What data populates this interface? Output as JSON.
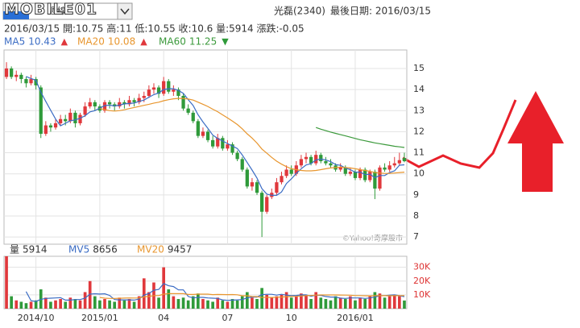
{
  "header": {
    "logo": "MOBILE01",
    "select": "週線",
    "title": "光磊(2340)",
    "last_date": "最後日期: 2016/03/15",
    "info": "2016/03/15 開:10.75 高:11 低:10.55 收:10.6 量:5914 漲跌:-0.05"
  },
  "chart_data": {
    "type": "candlestick",
    "watermark": "©Yahoo!奇摩股市",
    "up_color": "#e0383c",
    "down_color": "#2f9a3a",
    "categories": [
      null,
      null,
      null,
      null,
      null,
      null,
      "2014/10",
      null,
      null,
      null,
      null,
      null,
      null,
      null,
      null,
      null,
      null,
      null,
      null,
      "2015/01",
      null,
      null,
      null,
      null,
      null,
      null,
      null,
      null,
      null,
      null,
      null,
      null,
      "04",
      null,
      null,
      null,
      null,
      null,
      null,
      null,
      null,
      null,
      null,
      null,
      null,
      "07",
      null,
      null,
      null,
      null,
      null,
      null,
      null,
      null,
      null,
      null,
      null,
      null,
      "10",
      null,
      null,
      null,
      null,
      null,
      null,
      null,
      null,
      null,
      null,
      null,
      null,
      "2016/01",
      null,
      null,
      null,
      null,
      null,
      null,
      null,
      null,
      null,
      null
    ],
    "ylim": [
      6.66,
      15.88
    ],
    "yticks": [
      7,
      8,
      9,
      10,
      11,
      12,
      13,
      14,
      15
    ],
    "grid": true,
    "candles": [
      [
        14.6,
        15.3,
        14.5,
        15.0
      ],
      [
        15.0,
        15.1,
        14.5,
        14.6
      ],
      [
        14.6,
        14.9,
        14.4,
        14.7
      ],
      [
        14.7,
        14.8,
        14.3,
        14.5
      ],
      [
        14.5,
        14.6,
        14.1,
        14.3
      ],
      [
        14.3,
        14.7,
        14.2,
        14.5
      ],
      [
        14.5,
        14.6,
        14.0,
        14.2
      ],
      [
        14.1,
        14.2,
        11.7,
        11.9
      ],
      [
        11.9,
        12.5,
        11.8,
        12.3
      ],
      [
        12.3,
        12.4,
        12.0,
        12.2
      ],
      [
        12.2,
        12.6,
        12.1,
        12.4
      ],
      [
        12.4,
        12.8,
        12.3,
        12.6
      ],
      [
        12.6,
        12.8,
        12.3,
        12.5
      ],
      [
        12.5,
        13.1,
        12.4,
        12.9
      ],
      [
        12.9,
        13.0,
        12.2,
        12.4
      ],
      [
        12.4,
        12.9,
        12.3,
        12.8
      ],
      [
        12.8,
        13.4,
        12.7,
        13.2
      ],
      [
        13.2,
        13.6,
        13.1,
        13.4
      ],
      [
        13.4,
        13.5,
        13.0,
        13.2
      ],
      [
        13.2,
        13.3,
        12.9,
        13.0
      ],
      [
        13.0,
        13.5,
        12.9,
        13.4
      ],
      [
        13.4,
        13.5,
        13.1,
        13.3
      ],
      [
        13.3,
        13.4,
        13.0,
        13.2
      ],
      [
        13.2,
        13.6,
        13.1,
        13.4
      ],
      [
        13.4,
        13.5,
        13.1,
        13.3
      ],
      [
        13.3,
        13.7,
        13.2,
        13.5
      ],
      [
        13.5,
        13.6,
        13.2,
        13.4
      ],
      [
        13.4,
        13.8,
        13.3,
        13.6
      ],
      [
        13.6,
        13.9,
        13.4,
        13.7
      ],
      [
        13.7,
        14.2,
        13.6,
        14.0
      ],
      [
        14.0,
        14.3,
        13.8,
        14.1
      ],
      [
        14.1,
        14.2,
        13.6,
        13.8
      ],
      [
        13.8,
        14.6,
        13.7,
        14.4
      ],
      [
        14.4,
        14.5,
        13.8,
        13.9
      ],
      [
        13.9,
        14.2,
        13.7,
        14.0
      ],
      [
        14.0,
        14.1,
        13.5,
        13.7
      ],
      [
        13.7,
        13.8,
        13.0,
        13.1
      ],
      [
        13.1,
        13.3,
        12.8,
        12.9
      ],
      [
        12.9,
        13.0,
        12.4,
        12.5
      ],
      [
        12.5,
        12.6,
        11.7,
        11.8
      ],
      [
        11.8,
        12.2,
        11.7,
        12.0
      ],
      [
        12.0,
        12.1,
        11.5,
        11.6
      ],
      [
        11.6,
        11.8,
        11.2,
        11.3
      ],
      [
        11.3,
        11.9,
        11.2,
        11.7
      ],
      [
        11.7,
        11.8,
        11.1,
        11.2
      ],
      [
        11.2,
        11.6,
        11.1,
        11.4
      ],
      [
        11.4,
        11.5,
        10.9,
        11.0
      ],
      [
        11.0,
        11.1,
        10.6,
        10.7
      ],
      [
        10.7,
        10.8,
        10.1,
        10.2
      ],
      [
        10.2,
        10.3,
        9.3,
        9.4
      ],
      [
        9.4,
        9.8,
        9.2,
        9.6
      ],
      [
        9.6,
        9.7,
        9.0,
        9.1
      ],
      [
        9.1,
        9.2,
        7.0,
        8.2
      ],
      [
        8.2,
        9.0,
        8.1,
        8.9
      ],
      [
        8.9,
        9.3,
        8.8,
        9.1
      ],
      [
        9.1,
        9.8,
        9.0,
        9.6
      ],
      [
        9.6,
        10.1,
        9.5,
        9.9
      ],
      [
        9.9,
        10.4,
        9.8,
        10.2
      ],
      [
        10.2,
        10.4,
        9.9,
        10.0
      ],
      [
        10.0,
        10.6,
        9.9,
        10.4
      ],
      [
        10.4,
        10.9,
        10.3,
        10.7
      ],
      [
        10.7,
        11.0,
        10.5,
        10.8
      ],
      [
        10.8,
        10.9,
        10.4,
        10.5
      ],
      [
        10.5,
        11.1,
        10.4,
        10.9
      ],
      [
        10.9,
        11.0,
        10.5,
        10.6
      ],
      [
        10.6,
        10.8,
        10.4,
        10.5
      ],
      [
        10.5,
        10.7,
        10.3,
        10.4
      ],
      [
        10.4,
        10.5,
        10.1,
        10.2
      ],
      [
        10.2,
        10.5,
        10.1,
        10.3
      ],
      [
        10.3,
        10.4,
        9.9,
        10.0
      ],
      [
        10.0,
        10.3,
        9.9,
        10.1
      ],
      [
        10.1,
        10.2,
        9.7,
        9.8
      ],
      [
        9.8,
        10.3,
        9.7,
        10.2
      ],
      [
        10.2,
        10.3,
        9.6,
        9.7
      ],
      [
        9.7,
        10.2,
        9.6,
        10.1
      ],
      [
        10.1,
        10.2,
        8.8,
        9.3
      ],
      [
        9.3,
        10.4,
        9.2,
        10.3
      ],
      [
        10.3,
        10.5,
        10.1,
        10.2
      ],
      [
        10.2,
        10.6,
        10.1,
        10.4
      ],
      [
        10.4,
        10.8,
        10.3,
        10.5
      ],
      [
        10.5,
        11.0,
        10.4,
        10.65
      ],
      [
        10.75,
        11,
        10.55,
        10.6
      ]
    ],
    "series": [
      {
        "name": "MA5",
        "color": "#3b6cc4",
        "trend": "▲",
        "trend_color": "#e0383c",
        "last": 10.43,
        "values": [
          null,
          null,
          null,
          null,
          14.62,
          14.52,
          14.44,
          13.88,
          13.44,
          13.02,
          12.6,
          12.28,
          12.4,
          12.52,
          12.56,
          12.64,
          12.76,
          12.94,
          13.0,
          13.12,
          13.24,
          13.26,
          13.22,
          13.26,
          13.32,
          13.34,
          13.36,
          13.44,
          13.5,
          13.64,
          13.76,
          13.84,
          14.0,
          14.04,
          14.04,
          13.96,
          13.82,
          13.52,
          13.24,
          12.8,
          12.46,
          12.16,
          11.84,
          11.68,
          11.56,
          11.44,
          11.32,
          11.2,
          10.9,
          10.54,
          10.18,
          9.8,
          9.3,
          9.04,
          8.98,
          8.98,
          9.14,
          9.54,
          9.76,
          10.02,
          10.24,
          10.42,
          10.48,
          10.66,
          10.7,
          10.66,
          10.58,
          10.44,
          10.4,
          10.28,
          10.2,
          10.08,
          10.08,
          9.96,
          9.98,
          9.82,
          9.92,
          9.92,
          10.06,
          10.14,
          10.41,
          10.43
        ]
      },
      {
        "name": "MA20",
        "color": "#e8962e",
        "trend": "▲",
        "trend_color": "#e0383c",
        "last": 10.08,
        "values": [
          null,
          null,
          null,
          null,
          null,
          null,
          null,
          null,
          null,
          null,
          null,
          null,
          null,
          null,
          null,
          null,
          null,
          null,
          null,
          13.1,
          13.05,
          13.0,
          12.98,
          13.0,
          13.04,
          13.1,
          13.15,
          13.2,
          13.25,
          13.3,
          13.36,
          13.4,
          13.47,
          13.52,
          13.56,
          13.58,
          13.58,
          13.55,
          13.5,
          13.4,
          13.3,
          13.2,
          13.07,
          12.95,
          12.8,
          12.66,
          12.5,
          12.34,
          12.14,
          11.9,
          11.7,
          11.46,
          11.18,
          10.98,
          10.78,
          10.6,
          10.46,
          10.34,
          10.24,
          10.2,
          10.16,
          10.14,
          10.14,
          10.16,
          10.2,
          10.24,
          10.28,
          10.3,
          10.32,
          10.3,
          10.28,
          10.24,
          10.2,
          10.16,
          10.12,
          10.06,
          10.04,
          10.02,
          10.02,
          10.04,
          10.06,
          10.08
        ]
      },
      {
        "name": "MA60",
        "color": "#3c9a3c",
        "trend": "▼",
        "trend_color": "#2f9a3a",
        "last": 11.25,
        "values": [
          null,
          null,
          null,
          null,
          null,
          null,
          null,
          null,
          null,
          null,
          null,
          null,
          null,
          null,
          null,
          null,
          null,
          null,
          null,
          null,
          null,
          null,
          null,
          null,
          null,
          null,
          null,
          null,
          null,
          null,
          null,
          null,
          null,
          null,
          null,
          null,
          null,
          null,
          null,
          null,
          null,
          null,
          null,
          null,
          null,
          null,
          null,
          null,
          null,
          null,
          null,
          null,
          null,
          null,
          null,
          null,
          null,
          null,
          null,
          null,
          null,
          null,
          null,
          12.2,
          12.12,
          12.05,
          11.98,
          11.92,
          11.86,
          11.8,
          11.74,
          11.68,
          11.62,
          11.57,
          11.52,
          11.47,
          11.43,
          11.39,
          11.35,
          11.31,
          11.28,
          11.25
        ]
      }
    ],
    "volume": {
      "name": "量",
      "last": 5914,
      "ylim": [
        0,
        38000
      ],
      "yticks": [
        {
          "value": 10000,
          "label": "10K"
        },
        {
          "value": 20000,
          "label": "20K"
        },
        {
          "value": 30000,
          "label": "30K"
        }
      ],
      "values": [
        38000,
        9000,
        6000,
        5000,
        4000,
        5000,
        6000,
        14000,
        8000,
        5000,
        6000,
        7000,
        5000,
        8000,
        7000,
        6000,
        12000,
        20000,
        9000,
        6000,
        7000,
        6000,
        5000,
        8000,
        6000,
        7000,
        5000,
        9000,
        22000,
        12000,
        19000,
        8000,
        30000,
        14000,
        9000,
        7000,
        8000,
        6000,
        9000,
        11000,
        7000,
        6000,
        5000,
        8000,
        6000,
        5000,
        7000,
        6000,
        9000,
        12000,
        8000,
        7000,
        15000,
        10000,
        8000,
        9000,
        10000,
        12000,
        8000,
        9000,
        11000,
        10000,
        7000,
        12000,
        8000,
        7000,
        6000,
        9000,
        8000,
        7000,
        9000,
        6000,
        8000,
        7000,
        9000,
        12000,
        11000,
        8000,
        9000,
        10000,
        9000,
        5914
      ],
      "series": [
        {
          "name": "MV5",
          "color": "#3b6cc4",
          "last": 8656,
          "values": [
            null,
            null,
            null,
            null,
            12400,
            5800,
            5200,
            6800,
            7400,
            7600,
            7800,
            8000,
            6200,
            6200,
            6600,
            6600,
            7600,
            10600,
            10800,
            10600,
            10800,
            9600,
            6600,
            6400,
            6400,
            6400,
            6200,
            7000,
            9800,
            11000,
            13400,
            14000,
            18200,
            16600,
            16000,
            13600,
            13600,
            8800,
            7800,
            8200,
            8200,
            7800,
            7600,
            7400,
            6400,
            6000,
            6200,
            6400,
            6600,
            7800,
            8400,
            8400,
            10200,
            10400,
            10400,
            9800,
            10400,
            9800,
            9400,
            9600,
            10000,
            10000,
            9000,
            9800,
            9600,
            8800,
            8400,
            8400,
            7600,
            7400,
            7800,
            7800,
            7800,
            7400,
            7800,
            8400,
            9400,
            9400,
            9800,
            10000,
            9400,
            8656
          ]
        },
        {
          "name": "MV20",
          "color": "#e8962e",
          "last": 9457,
          "values": [
            null,
            null,
            null,
            null,
            null,
            null,
            null,
            null,
            null,
            null,
            null,
            null,
            null,
            null,
            null,
            null,
            null,
            null,
            null,
            8150,
            7600,
            7450,
            7400,
            7550,
            7650,
            7750,
            7700,
            7800,
            8550,
            8800,
            9450,
            9500,
            10550,
            10850,
            10900,
            10950,
            10900,
            10300,
            10300,
            10550,
            10550,
            10550,
            10200,
            10300,
            10250,
            10150,
            10250,
            10050,
            9350,
            9350,
            8800,
            8750,
            8050,
            8250,
            8150,
            8300,
            8400,
            8700,
            8800,
            8950,
            9200,
            9450,
            9550,
            9850,
            9950,
            9950,
            9950,
            9950,
            9900,
            9800,
            9750,
            9500,
            9500,
            9350,
            9300,
            9400,
            9450,
            9400,
            9350,
            9400,
            9450,
            9457
          ]
        }
      ]
    }
  }
}
